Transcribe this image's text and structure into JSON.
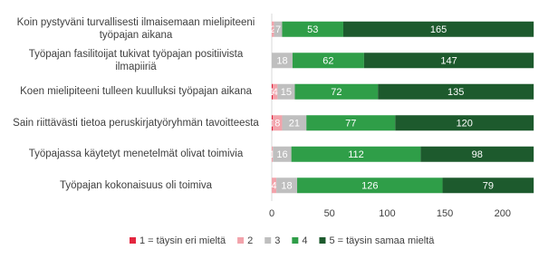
{
  "chart_data": {
    "type": "stacked-barh",
    "categories": [
      "Koin pystyväni turvallisesti ilmaisemaan mielipiteeni työpajan aikana",
      "Työpajan fasilitoijat tukivat työpajan positiivista ilmapiiriä",
      "Koen mielipiteeni tulleen kuulluksi työpajan aikana",
      "Sain riittävästi tietoa peruskirjatyöryhmän tavoitteesta",
      "Työpajassa käytetyt menetelmät olivat toimivia",
      "Työpajan kokonaisuus oli toimiva"
    ],
    "series": [
      {
        "name": "1 = täysin eri mieltä",
        "color": "#e3263f",
        "values": [
          0,
          0,
          1,
          1,
          0,
          0
        ]
      },
      {
        "name": "2",
        "color": "#f2a3ab",
        "values": [
          2,
          0,
          4,
          8,
          1,
          4
        ]
      },
      {
        "name": "3",
        "color": "#bfbfbf",
        "values": [
          7,
          18,
          15,
          21,
          16,
          18
        ]
      },
      {
        "name": "4",
        "color": "#2f9e48",
        "values": [
          53,
          62,
          72,
          77,
          112,
          126
        ]
      },
      {
        "name": "5 = täysin samaa mieltä",
        "color": "#1d5a2d",
        "values": [
          165,
          147,
          135,
          120,
          98,
          79
        ]
      }
    ],
    "xlim": [
      0,
      230
    ],
    "xticks": [
      0,
      50,
      100,
      150,
      200
    ],
    "legend": "bottom"
  }
}
